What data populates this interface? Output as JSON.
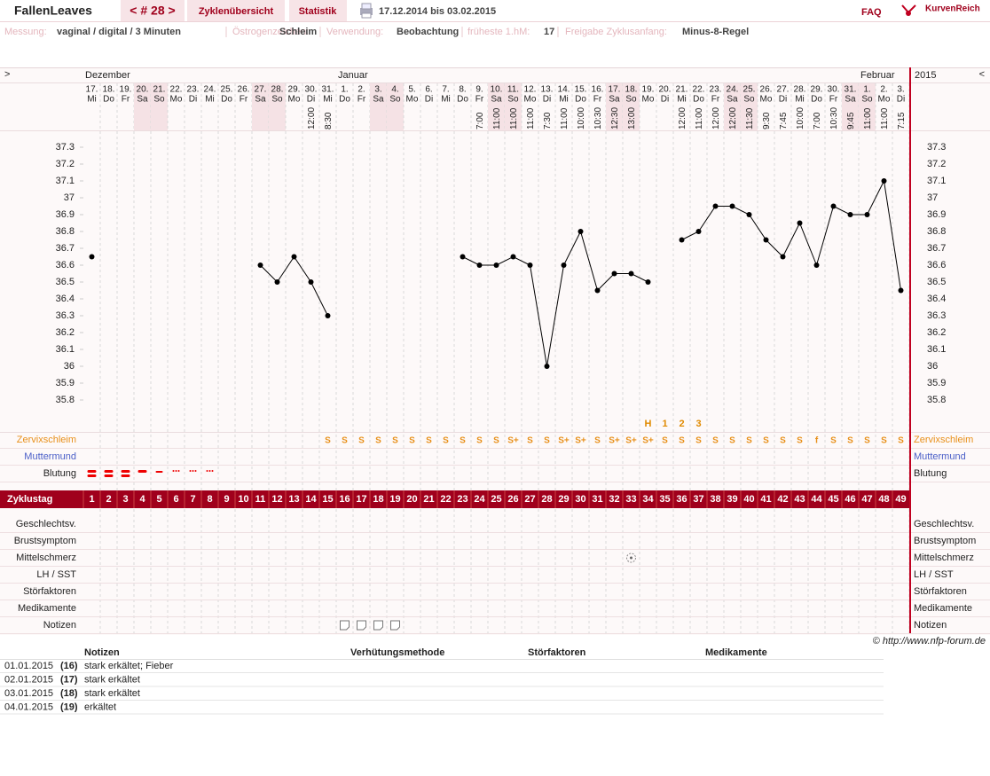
{
  "header": {
    "user": "FallenLeaves",
    "cycle_nav": "< # 28 >",
    "tabs": [
      "Zyklenübersicht",
      "Statistik"
    ],
    "period": "17.12.2014 bis 03.02.2015",
    "faq": "FAQ",
    "logo": "KurvenReich"
  },
  "info": [
    {
      "label": "Messung:",
      "value": "vaginal / digital / 3 Minuten"
    },
    {
      "label": "Östrogenzeichen:",
      "value": "Schleim"
    },
    {
      "label": "Verwendung:",
      "value": "Beobachtung"
    },
    {
      "label": "früheste 1.hM:",
      "value": "17"
    },
    {
      "label": "Freigabe Zyklusanfang:",
      "value": "Minus-8-Regel"
    }
  ],
  "chart_data": {
    "type": "line",
    "nav_prev": ">",
    "nav_next": "<",
    "year": "2015",
    "months": [
      "Dezember",
      "Januar",
      "Februar"
    ],
    "categories": [
      "17.",
      "18.",
      "19.",
      "20.",
      "21.",
      "22.",
      "23.",
      "24.",
      "25.",
      "26.",
      "27.",
      "28.",
      "29.",
      "30.",
      "31.",
      "1.",
      "2.",
      "3.",
      "4.",
      "5.",
      "6.",
      "7.",
      "8.",
      "9.",
      "10.",
      "11.",
      "12.",
      "13.",
      "14.",
      "15.",
      "16.",
      "17.",
      "18.",
      "19.",
      "20.",
      "21.",
      "22.",
      "23.",
      "24.",
      "25.",
      "26.",
      "27.",
      "28.",
      "29.",
      "30.",
      "31.",
      "1.",
      "2.",
      "3."
    ],
    "weekdays": [
      "Mi",
      "Do",
      "Fr",
      "Sa",
      "So",
      "Mo",
      "Di",
      "Mi",
      "Do",
      "Fr",
      "Sa",
      "So",
      "Mo",
      "Di",
      "Mi",
      "Do",
      "Fr",
      "Sa",
      "So",
      "Mo",
      "Di",
      "Mi",
      "Do",
      "Fr",
      "Sa",
      "So",
      "Mo",
      "Di",
      "Mi",
      "Do",
      "Fr",
      "Sa",
      "So",
      "Mo",
      "Di",
      "Mi",
      "Do",
      "Fr",
      "Sa",
      "So",
      "Mo",
      "Di",
      "Mi",
      "Do",
      "Fr",
      "Sa",
      "So",
      "Mo",
      "Di"
    ],
    "times": [
      null,
      null,
      null,
      null,
      null,
      null,
      null,
      null,
      null,
      null,
      null,
      null,
      null,
      "12:00",
      "8:30",
      null,
      null,
      null,
      null,
      null,
      null,
      null,
      null,
      "7:00",
      "11:00",
      "11:00",
      "11:00",
      "7:30",
      "11:00",
      "10:00",
      "10:30",
      "12:30",
      "13:00",
      null,
      null,
      "12:00",
      "11:00",
      "12:00",
      "12:00",
      "11:30",
      "9:30",
      "7:45",
      "10:00",
      "7:00",
      "10:30",
      "9:45",
      "11:00",
      "11:00",
      "7:15"
    ],
    "values": [
      36.65,
      null,
      null,
      null,
      null,
      null,
      null,
      null,
      null,
      null,
      36.6,
      36.5,
      36.65,
      36.5,
      36.3,
      null,
      null,
      null,
      null,
      null,
      null,
      null,
      36.65,
      36.6,
      36.6,
      36.65,
      36.6,
      36.0,
      36.6,
      36.8,
      36.45,
      36.55,
      36.55,
      36.5,
      null,
      36.75,
      36.8,
      36.95,
      36.95,
      36.9,
      36.75,
      36.65,
      36.85,
      36.6,
      36.95,
      36.9,
      36.9,
      37.1,
      36.45
    ],
    "color": "#000000",
    "ylim": [
      35.7,
      37.4
    ],
    "yticks": [
      35.8,
      35.9,
      36,
      36.1,
      36.2,
      36.3,
      36.4,
      36.5,
      36.6,
      36.7,
      36.8,
      36.9,
      37,
      37.1,
      37.2,
      37.3
    ],
    "evaluation": [
      null,
      null,
      null,
      null,
      null,
      null,
      null,
      null,
      null,
      null,
      null,
      null,
      null,
      null,
      null,
      null,
      null,
      null,
      null,
      null,
      null,
      null,
      null,
      null,
      null,
      null,
      null,
      null,
      null,
      null,
      null,
      null,
      null,
      "H",
      "1",
      "2",
      "3",
      null,
      null,
      null,
      null,
      null,
      null,
      null,
      null,
      null,
      null,
      null,
      null
    ],
    "cervical_mucus": [
      null,
      null,
      null,
      null,
      null,
      null,
      null,
      null,
      null,
      null,
      null,
      null,
      null,
      null,
      "S",
      "S",
      "S",
      "S",
      "S",
      "S",
      "S",
      "S",
      "S",
      "S",
      "S",
      "S+",
      "S",
      "S",
      "S+",
      "S+",
      "S",
      "S+",
      "S+",
      "S+",
      "S",
      "S",
      "S",
      "S",
      "S",
      "S",
      "S",
      "S",
      "S",
      "f",
      "S",
      "S",
      "S",
      "S",
      "S"
    ],
    "cycle_days": [
      1,
      2,
      3,
      4,
      5,
      6,
      7,
      8,
      9,
      10,
      11,
      12,
      13,
      14,
      15,
      16,
      17,
      18,
      19,
      20,
      21,
      22,
      23,
      24,
      25,
      26,
      27,
      28,
      29,
      30,
      31,
      32,
      33,
      34,
      35,
      36,
      37,
      38,
      39,
      40,
      41,
      42,
      43,
      44,
      45,
      46,
      47,
      48,
      49
    ],
    "row_labels": [
      "Zervixschleim",
      "Muttermund",
      "Blutung",
      "Zyklustag",
      "Geschlechtsv.",
      "Brustsymptom",
      "Mittelschmerz",
      "LH / SST",
      "Störfaktoren",
      "Medikamente",
      "Notizen"
    ]
  },
  "copyright": "© http://www.nfp-forum.de",
  "notes": {
    "headers": [
      "Notizen",
      "Verhütungsmethode",
      "Störfaktoren",
      "Medikamente"
    ],
    "rows": [
      [
        "01.01.2015",
        "(16)",
        "stark erkältet; Fieber"
      ],
      [
        "02.01.2015",
        "(17)",
        "stark erkältet"
      ],
      [
        "03.01.2015",
        "(18)",
        "stark erkältet"
      ],
      [
        "04.01.2015",
        "(19)",
        "erkältet"
      ]
    ]
  }
}
